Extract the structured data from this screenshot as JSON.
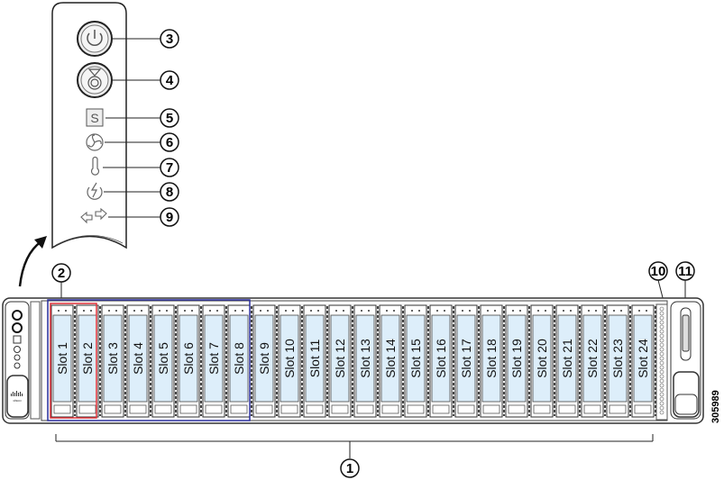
{
  "figure_id": "305989",
  "slots": [
    "Slot 1",
    "Slot 2",
    "Slot 3",
    "Slot 4",
    "Slot 5",
    "Slot 6",
    "Slot 7",
    "Slot 8",
    "Slot 9",
    "Slot 10",
    "Slot 11",
    "Slot 12",
    "Slot 13",
    "Slot 14",
    "Slot 15",
    "Slot 16",
    "Slot 17",
    "Slot 18",
    "Slot 19",
    "Slot 20",
    "Slot 21",
    "Slot 22",
    "Slot 23",
    "Slot 24"
  ],
  "callouts": {
    "c1": "1",
    "c2": "2",
    "c3": "3",
    "c4": "4",
    "c5": "5",
    "c6": "6",
    "c7": "7",
    "c8": "8",
    "c9": "9",
    "c10": "10",
    "c11": "11"
  },
  "panel_icons": [
    "power-button-icon",
    "unit-identification-button-icon",
    "system-status-icon",
    "fan-status-icon",
    "temperature-status-icon",
    "power-supply-status-icon",
    "network-link-activity-icon"
  ],
  "colors": {
    "drive_fill": "#ddeefa",
    "highlight_red": "#e0333a",
    "highlight_blue": "#2b2f9e"
  }
}
